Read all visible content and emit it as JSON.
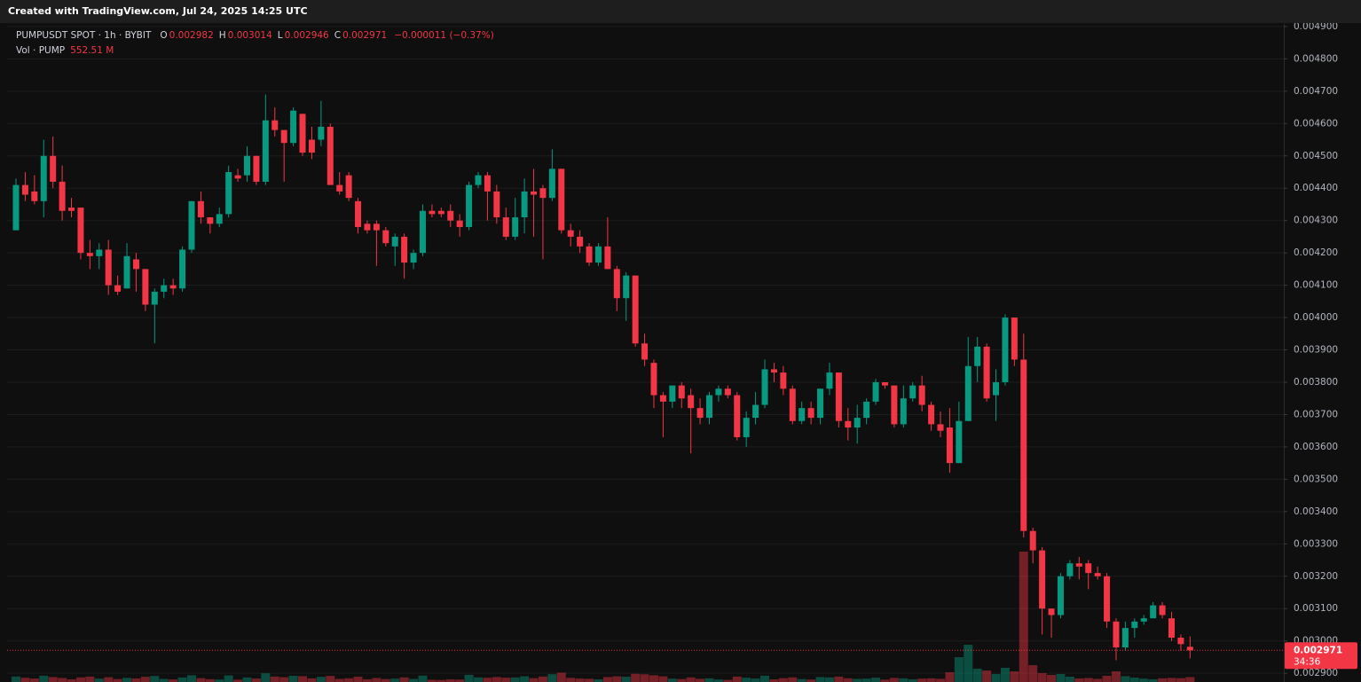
{
  "header": {
    "title": "Created with TradingView.com, Jul 24, 2025 14:25 UTC"
  },
  "chart_data": {
    "type": "candlestick",
    "legend": {
      "symbol": "PUMPUSDT SPOT · 1h · BYBIT",
      "items": [
        {
          "key": "O",
          "value": "0.002982"
        },
        {
          "key": "H",
          "value": "0.003014"
        },
        {
          "key": "L",
          "value": "0.002946"
        },
        {
          "key": "C",
          "value": "0.002971"
        }
      ],
      "change": "−0.000011 (−0.37%)",
      "volume_name": "Vol · PUMP",
      "volume_value": "552.51 M"
    },
    "last_price_label": "0.002971",
    "countdown": "34:36",
    "up_color": "#089981",
    "down_color": "#f23645",
    "grid": true,
    "ylim": [
      0.002873,
      0.004908
    ],
    "yticks": [
      {
        "value": 0.0029,
        "label": "0.002900"
      },
      {
        "value": 0.003,
        "label": "0.003000"
      },
      {
        "value": 0.0031,
        "label": "0.003100"
      },
      {
        "value": 0.0032,
        "label": "0.003200"
      },
      {
        "value": 0.0033,
        "label": "0.003300"
      },
      {
        "value": 0.0034,
        "label": "0.003400"
      },
      {
        "value": 0.0035,
        "label": "0.003500"
      },
      {
        "value": 0.0036,
        "label": "0.003600"
      },
      {
        "value": 0.0037,
        "label": "0.003700"
      },
      {
        "value": 0.0038,
        "label": "0.003800"
      },
      {
        "value": 0.0039,
        "label": "0.003900"
      },
      {
        "value": 0.004,
        "label": "0.004000"
      },
      {
        "value": 0.0041,
        "label": "0.004100"
      },
      {
        "value": 0.0042,
        "label": "0.004200"
      },
      {
        "value": 0.0043,
        "label": "0.004300"
      },
      {
        "value": 0.0044,
        "label": "0.004400"
      },
      {
        "value": 0.0045,
        "label": "0.004500"
      },
      {
        "value": 0.0046,
        "label": "0.004600"
      },
      {
        "value": 0.0047,
        "label": "0.004700"
      },
      {
        "value": 0.0048,
        "label": "0.004800"
      },
      {
        "value": 0.0049,
        "label": "0.004900"
      }
    ],
    "volume_lim": [
      0,
      20000
    ],
    "open": [
      0.00427,
      0.00441,
      0.00439,
      0.00436,
      0.0045,
      0.00442,
      0.00434,
      0.00434,
      0.0042,
      0.00419,
      0.00421,
      0.0041,
      0.00409,
      0.00418,
      0.00415,
      0.00404,
      0.00408,
      0.0041,
      0.00409,
      0.00421,
      0.00436,
      0.00431,
      0.00429,
      0.00432,
      0.00444,
      0.00444,
      0.0045,
      0.00442,
      0.00461,
      0.00458,
      0.00454,
      0.00463,
      0.00455,
      0.00455,
      0.00459,
      0.00441,
      0.00444,
      0.00436,
      0.00429,
      0.00429,
      0.00427,
      0.00422,
      0.00425,
      0.00417,
      0.0042,
      0.00433,
      0.00433,
      0.00433,
      0.0043,
      0.00428,
      0.00441,
      0.00444,
      0.00439,
      0.00431,
      0.00425,
      0.00431,
      0.00439,
      0.0044,
      0.00437,
      0.00446,
      0.00427,
      0.00425,
      0.00422,
      0.00417,
      0.00422,
      0.00415,
      0.00406,
      0.00413,
      0.00392,
      0.00386,
      0.00376,
      0.00374,
      0.00379,
      0.00376,
      0.00372,
      0.00369,
      0.00376,
      0.00378,
      0.00376,
      0.00363,
      0.00369,
      0.00373,
      0.00384,
      0.00383,
      0.00378,
      0.00368,
      0.00372,
      0.00369,
      0.00378,
      0.00383,
      0.00368,
      0.00366,
      0.00369,
      0.00374,
      0.0038,
      0.00379,
      0.00367,
      0.00375,
      0.00379,
      0.00373,
      0.00367,
      0.00366,
      0.00355,
      0.00368,
      0.00385,
      0.00391,
      0.00376,
      0.0038,
      0.004,
      0.00387,
      0.00334,
      0.00328,
      0.0031,
      0.00308,
      0.0032,
      0.00324,
      0.00324,
      0.00321,
      0.0032,
      0.00306,
      0.00298,
      0.00304,
      0.00306,
      0.00307,
      0.00311,
      0.00307,
      0.00301,
      0.002982
    ],
    "high": [
      0.00443,
      0.00445,
      0.00444,
      0.00455,
      0.00456,
      0.00447,
      0.00437,
      0.00434,
      0.00424,
      0.00423,
      0.00424,
      0.00413,
      0.00423,
      0.0042,
      0.00415,
      0.00409,
      0.00412,
      0.00412,
      0.00422,
      0.00436,
      0.00439,
      0.00431,
      0.00434,
      0.00447,
      0.00446,
      0.00453,
      0.0045,
      0.00469,
      0.00465,
      0.00458,
      0.00465,
      0.00463,
      0.00459,
      0.00467,
      0.0046,
      0.00445,
      0.00445,
      0.00437,
      0.0043,
      0.0043,
      0.00428,
      0.00426,
      0.00426,
      0.00421,
      0.00435,
      0.00435,
      0.00434,
      0.00435,
      0.00432,
      0.00442,
      0.00445,
      0.00445,
      0.00441,
      0.00434,
      0.00437,
      0.00443,
      0.00446,
      0.00441,
      0.00452,
      0.00446,
      0.00429,
      0.00427,
      0.00423,
      0.00423,
      0.00431,
      0.00416,
      0.00414,
      0.00413,
      0.00395,
      0.00387,
      0.00377,
      0.00379,
      0.0038,
      0.00378,
      0.00375,
      0.00377,
      0.00379,
      0.00379,
      0.00377,
      0.00371,
      0.00377,
      0.00387,
      0.00386,
      0.00385,
      0.00379,
      0.00374,
      0.00374,
      0.00378,
      0.00386,
      0.00383,
      0.00372,
      0.00373,
      0.00375,
      0.00381,
      0.0038,
      0.00379,
      0.00379,
      0.0038,
      0.00382,
      0.00374,
      0.00371,
      0.00372,
      0.00374,
      0.00394,
      0.00394,
      0.00392,
      0.00384,
      0.00401,
      0.004,
      0.00395,
      0.00335,
      0.00329,
      0.0031,
      0.00321,
      0.00325,
      0.00326,
      0.00325,
      0.00323,
      0.00321,
      0.00307,
      0.00306,
      0.00307,
      0.00308,
      0.00312,
      0.00312,
      0.00309,
      0.00302,
      0.003014
    ],
    "low": [
      0.00427,
      0.00436,
      0.00435,
      0.00431,
      0.0044,
      0.0043,
      0.00431,
      0.00418,
      0.00415,
      0.00415,
      0.00407,
      0.00407,
      0.00409,
      0.00408,
      0.00402,
      0.00392,
      0.00406,
      0.00407,
      0.00408,
      0.0042,
      0.00429,
      0.00426,
      0.00428,
      0.00431,
      0.00442,
      0.00442,
      0.00441,
      0.00441,
      0.00456,
      0.00442,
      0.00453,
      0.0045,
      0.00449,
      0.00453,
      0.00441,
      0.00438,
      0.00436,
      0.00426,
      0.00426,
      0.00416,
      0.00422,
      0.00416,
      0.00412,
      0.00415,
      0.00419,
      0.00431,
      0.00431,
      0.00428,
      0.00425,
      0.00427,
      0.0044,
      0.0043,
      0.00429,
      0.00424,
      0.00424,
      0.00426,
      0.00425,
      0.00418,
      0.00436,
      0.00426,
      0.00422,
      0.0042,
      0.00416,
      0.00416,
      0.00415,
      0.00402,
      0.00399,
      0.00391,
      0.00385,
      0.00372,
      0.00363,
      0.00372,
      0.00372,
      0.00358,
      0.00367,
      0.00367,
      0.00374,
      0.00375,
      0.00362,
      0.0036,
      0.00367,
      0.00372,
      0.0038,
      0.00376,
      0.00367,
      0.00367,
      0.00367,
      0.00367,
      0.00376,
      0.00366,
      0.00362,
      0.00361,
      0.00367,
      0.00373,
      0.00378,
      0.00366,
      0.00366,
      0.00374,
      0.00371,
      0.00365,
      0.00363,
      0.00352,
      0.00355,
      0.00368,
      0.0038,
      0.00374,
      0.00368,
      0.00379,
      0.00385,
      0.00332,
      0.00324,
      0.00302,
      0.00301,
      0.00307,
      0.00319,
      0.00319,
      0.00316,
      0.00319,
      0.00304,
      0.00294,
      0.00297,
      0.00301,
      0.00305,
      0.00307,
      0.00307,
      0.003,
      0.00297,
      0.002946
    ],
    "close": [
      0.00441,
      0.00438,
      0.00436,
      0.0045,
      0.00442,
      0.00433,
      0.00433,
      0.0042,
      0.00419,
      0.00421,
      0.0041,
      0.00408,
      0.00419,
      0.00415,
      0.00404,
      0.00408,
      0.0041,
      0.00409,
      0.00421,
      0.00436,
      0.00431,
      0.00429,
      0.00432,
      0.00445,
      0.00443,
      0.0045,
      0.00442,
      0.00461,
      0.00458,
      0.00454,
      0.00464,
      0.00451,
      0.00451,
      0.00459,
      0.00441,
      0.00439,
      0.00437,
      0.00428,
      0.00427,
      0.00427,
      0.00423,
      0.00425,
      0.00417,
      0.0042,
      0.00433,
      0.00432,
      0.00432,
      0.0043,
      0.00428,
      0.00441,
      0.00444,
      0.00439,
      0.00431,
      0.00425,
      0.00431,
      0.00439,
      0.00438,
      0.00437,
      0.00446,
      0.00427,
      0.00425,
      0.00422,
      0.00417,
      0.00422,
      0.00415,
      0.00406,
      0.00413,
      0.00392,
      0.00387,
      0.00376,
      0.00374,
      0.00379,
      0.00375,
      0.00372,
      0.00369,
      0.00376,
      0.00378,
      0.00376,
      0.00363,
      0.00369,
      0.00373,
      0.00384,
      0.00383,
      0.00378,
      0.00368,
      0.00372,
      0.00369,
      0.00378,
      0.00383,
      0.00368,
      0.00366,
      0.00369,
      0.00374,
      0.0038,
      0.00379,
      0.00367,
      0.00375,
      0.00379,
      0.00373,
      0.00367,
      0.00365,
      0.00355,
      0.00368,
      0.00385,
      0.00391,
      0.00375,
      0.0038,
      0.004,
      0.00387,
      0.00334,
      0.00328,
      0.0031,
      0.00308,
      0.0032,
      0.00324,
      0.00323,
      0.00321,
      0.0032,
      0.00306,
      0.00298,
      0.00304,
      0.00306,
      0.00307,
      0.00311,
      0.00308,
      0.00301,
      0.00299,
      0.002971
    ],
    "volume": [
      620,
      480,
      390,
      710,
      560,
      450,
      300,
      520,
      610,
      380,
      540,
      330,
      470,
      400,
      590,
      680,
      350,
      290,
      510,
      760,
      430,
      320,
      280,
      740,
      260,
      510,
      390,
      980,
      620,
      540,
      700,
      660,
      410,
      580,
      690,
      350,
      420,
      600,
      310,
      450,
      330,
      380,
      520,
      340,
      720,
      250,
      230,
      300,
      270,
      810,
      520,
      480,
      560,
      490,
      510,
      640,
      430,
      620,
      880,
      1050,
      470,
      390,
      360,
      300,
      560,
      640,
      590,
      920,
      870,
      760,
      640,
      380,
      330,
      520,
      360,
      420,
      280,
      240,
      610,
      480,
      390,
      710,
      300,
      430,
      520,
      330,
      280,
      560,
      520,
      610,
      420,
      350,
      380,
      490,
      270,
      460,
      410,
      300,
      380,
      420,
      360,
      1100,
      2800,
      4200,
      1500,
      1300,
      900,
      1600,
      1200,
      14700,
      1900,
      1000,
      800,
      900,
      600,
      400,
      450,
      350,
      700,
      1200,
      650,
      500,
      380,
      300,
      420,
      460,
      430,
      552.51
    ]
  }
}
